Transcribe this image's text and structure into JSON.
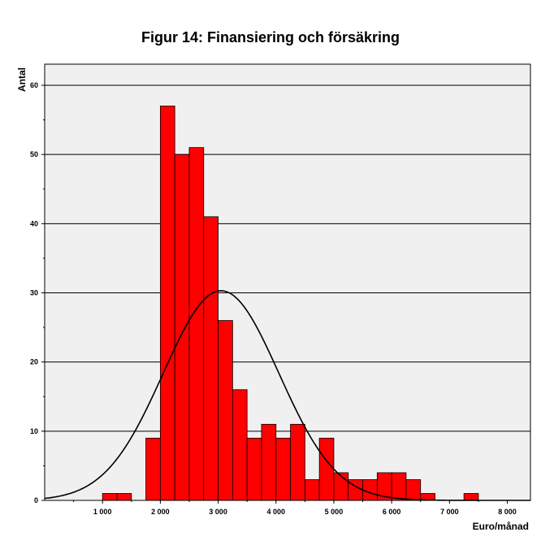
{
  "chart_data": {
    "type": "bar",
    "title": "Figur 14: Finansiering och försäkring",
    "xlabel": "Euro/månad",
    "ylabel": "Antal",
    "xlim": [
      0,
      8400
    ],
    "ylim": [
      0,
      60
    ],
    "x_ticks": [
      1000,
      2000,
      3000,
      4000,
      5000,
      6000,
      7000,
      8000
    ],
    "x_tick_labels": [
      "1 000",
      "2 000",
      "3 000",
      "4 000",
      "5 000",
      "6 000",
      "7 000",
      "8 000"
    ],
    "y_ticks": [
      0,
      10,
      20,
      30,
      40,
      50,
      60
    ],
    "y_tick_labels": [
      "0",
      "10",
      "20",
      "30",
      "40",
      "50",
      "60"
    ],
    "grid": "horizontal",
    "bin_width": 250,
    "bars": [
      {
        "x0": 1000,
        "x1": 1250,
        "value": 1
      },
      {
        "x0": 1250,
        "x1": 1500,
        "value": 1
      },
      {
        "x0": 1750,
        "x1": 2000,
        "value": 9
      },
      {
        "x0": 2000,
        "x1": 2250,
        "value": 57
      },
      {
        "x0": 2250,
        "x1": 2500,
        "value": 50
      },
      {
        "x0": 2500,
        "x1": 2750,
        "value": 51
      },
      {
        "x0": 2750,
        "x1": 3000,
        "value": 41
      },
      {
        "x0": 3000,
        "x1": 3250,
        "value": 26
      },
      {
        "x0": 3250,
        "x1": 3500,
        "value": 16
      },
      {
        "x0": 3500,
        "x1": 3750,
        "value": 9
      },
      {
        "x0": 3750,
        "x1": 4000,
        "value": 11
      },
      {
        "x0": 4000,
        "x1": 4250,
        "value": 9
      },
      {
        "x0": 4250,
        "x1": 4500,
        "value": 11
      },
      {
        "x0": 4500,
        "x1": 4750,
        "value": 3
      },
      {
        "x0": 4750,
        "x1": 5000,
        "value": 9
      },
      {
        "x0": 5000,
        "x1": 5250,
        "value": 4
      },
      {
        "x0": 5250,
        "x1": 5500,
        "value": 3
      },
      {
        "x0": 5500,
        "x1": 5750,
        "value": 3
      },
      {
        "x0": 5750,
        "x1": 6000,
        "value": 4
      },
      {
        "x0": 6000,
        "x1": 6250,
        "value": 4
      },
      {
        "x0": 6250,
        "x1": 6500,
        "value": 3
      },
      {
        "x0": 6500,
        "x1": 6750,
        "value": 1
      },
      {
        "x0": 7250,
        "x1": 7500,
        "value": 1
      }
    ],
    "normal_curve": {
      "mean": 3050,
      "sd": 1000,
      "peak": 30.3
    },
    "colors": {
      "bar_fill": "#ff0000",
      "bar_stroke": "#000000",
      "plot_background": "#f0f0f0",
      "curve": "#000000",
      "gridline": "#000000"
    }
  }
}
